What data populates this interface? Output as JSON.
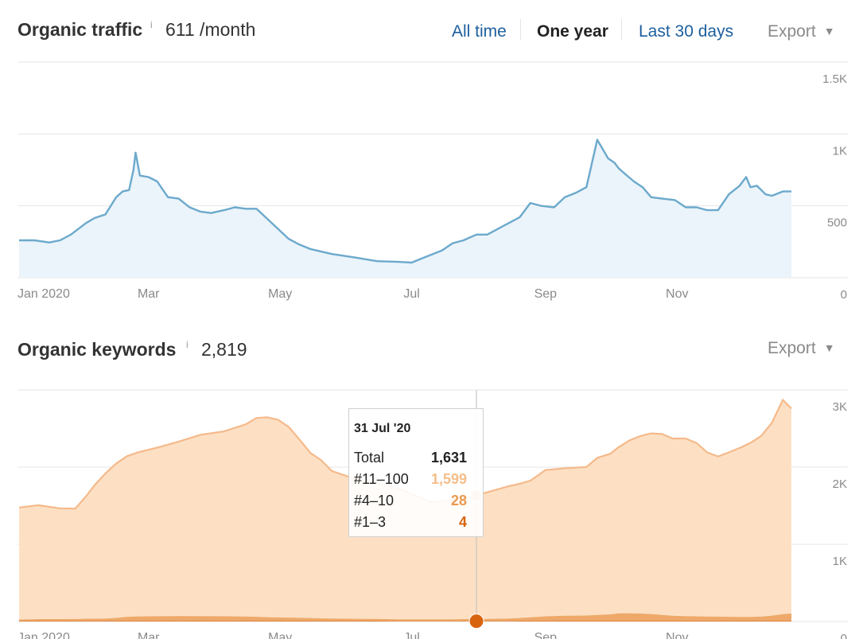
{
  "traffic_section": {
    "title": "Organic traffic",
    "info": "i",
    "value": "611 /month",
    "ranges": [
      "All time",
      "One year",
      "Last 30 days"
    ],
    "active_range": "One year",
    "export_label": "Export"
  },
  "keywords_section": {
    "title": "Organic keywords",
    "info": "i",
    "value": "2,819",
    "export_label": "Export"
  },
  "tooltip": {
    "date": "31 Jul '20",
    "rows": [
      {
        "label": "Total",
        "value": "1,631",
        "color": "#222222"
      },
      {
        "label": "#11–100",
        "value": "1,599",
        "color": "#f5be8a"
      },
      {
        "label": "#4–10",
        "value": "28",
        "color": "#eb9a50"
      },
      {
        "label": "#1–3",
        "value": "4",
        "color": "#d8640f"
      }
    ]
  },
  "colors": {
    "traffic_line": "#6ca9cc",
    "traffic_fill": "#ebf4fa",
    "kw_top100_fill": "#fde0c4",
    "kw_top100_line": "#f5b98a",
    "kw_top10": "#eb9a50",
    "kw_top3": "#d8640f",
    "grid": "#e6e6e6",
    "axis_text": "#8a8a8a"
  },
  "chart_data": [
    {
      "type": "area",
      "title": "Organic traffic",
      "x_ticks": [
        "Jan 2020",
        "Mar",
        "May",
        "Jul",
        "Sep",
        "Nov"
      ],
      "y_ticks": [
        "0",
        "500",
        "1K",
        "1.5K"
      ],
      "ylim": [
        0,
        1500
      ],
      "xlim": [
        "2020-01-01",
        "2020-12-31"
      ],
      "grid": true,
      "series": [
        {
          "values_x": [
            "2020-01-01",
            "2020-01-08",
            "2020-01-15",
            "2020-01-20",
            "2020-01-25",
            "2020-02-01",
            "2020-02-05",
            "2020-02-10",
            "2020-02-15",
            "2020-02-18",
            "2020-02-21",
            "2020-02-23",
            "2020-02-24",
            "2020-02-26",
            "2020-03-01",
            "2020-03-05",
            "2020-03-10",
            "2020-03-15",
            "2020-03-20",
            "2020-03-25",
            "2020-03-30",
            "2020-04-05",
            "2020-04-10",
            "2020-04-15",
            "2020-04-20",
            "2020-04-25",
            "2020-04-30",
            "2020-05-05",
            "2020-05-10",
            "2020-05-15",
            "2020-05-25",
            "2020-06-05",
            "2020-06-15",
            "2020-06-25",
            "2020-07-01",
            "2020-07-05",
            "2020-07-10",
            "2020-07-15",
            "2020-07-20",
            "2020-07-25",
            "2020-07-31",
            "2020-08-05",
            "2020-08-10",
            "2020-08-15",
            "2020-08-20",
            "2020-08-25",
            "2020-08-30",
            "2020-09-05",
            "2020-09-10",
            "2020-09-15",
            "2020-09-20",
            "2020-09-25",
            "2020-09-30",
            "2020-10-03",
            "2020-10-05",
            "2020-10-08",
            "2020-10-12",
            "2020-10-16",
            "2020-10-20",
            "2020-10-25",
            "2020-10-31",
            "2020-11-05",
            "2020-11-10",
            "2020-11-15",
            "2020-11-20",
            "2020-11-25",
            "2020-11-30",
            "2020-12-03",
            "2020-12-05",
            "2020-12-08",
            "2020-12-12",
            "2020-12-15",
            "2020-12-20",
            "2020-12-24"
          ],
          "values": [
            260,
            260,
            245,
            260,
            300,
            380,
            415,
            440,
            560,
            600,
            610,
            750,
            870,
            710,
            700,
            670,
            560,
            550,
            490,
            460,
            450,
            470,
            490,
            480,
            480,
            410,
            340,
            270,
            230,
            200,
            165,
            140,
            115,
            110,
            105,
            130,
            160,
            190,
            240,
            260,
            300,
            300,
            340,
            380,
            420,
            520,
            500,
            490,
            560,
            590,
            630,
            960,
            830,
            800,
            760,
            720,
            670,
            630,
            560,
            550,
            540,
            490,
            490,
            470,
            470,
            580,
            640,
            700,
            630,
            640,
            580,
            570,
            600,
            600
          ]
        }
      ]
    },
    {
      "type": "area",
      "title": "Organic keywords",
      "x_ticks": [
        "Jan 2020",
        "Mar",
        "May",
        "Jul",
        "Sep",
        "Nov"
      ],
      "y_ticks": [
        "0",
        "1K",
        "2K",
        "3K"
      ],
      "ylim": [
        0,
        3000
      ],
      "xlim": [
        "2020-01-01",
        "2020-12-31"
      ],
      "grid": true,
      "stacked": true,
      "x": [
        "2020-01-01",
        "2020-01-10",
        "2020-01-20",
        "2020-01-27",
        "2020-02-01",
        "2020-02-05",
        "2020-02-10",
        "2020-02-15",
        "2020-02-20",
        "2020-02-25",
        "2020-03-05",
        "2020-03-15",
        "2020-03-25",
        "2020-04-05",
        "2020-04-15",
        "2020-04-20",
        "2020-04-25",
        "2020-04-30",
        "2020-05-05",
        "2020-05-10",
        "2020-05-15",
        "2020-05-20",
        "2020-05-25",
        "2020-06-05",
        "2020-06-15",
        "2020-06-25",
        "2020-07-05",
        "2020-07-10",
        "2020-07-15",
        "2020-07-20",
        "2020-07-25",
        "2020-07-31",
        "2020-08-05",
        "2020-08-15",
        "2020-08-20",
        "2020-08-25",
        "2020-09-01",
        "2020-09-10",
        "2020-09-20",
        "2020-09-25",
        "2020-10-01",
        "2020-10-05",
        "2020-10-10",
        "2020-10-15",
        "2020-10-20",
        "2020-10-25",
        "2020-10-30",
        "2020-11-05",
        "2020-11-10",
        "2020-11-15",
        "2020-11-20",
        "2020-11-25",
        "2020-12-01",
        "2020-12-05",
        "2020-12-10",
        "2020-12-15",
        "2020-12-20",
        "2020-12-24"
      ],
      "series": [
        {
          "name": "#11–100",
          "values": [
            1450,
            1475,
            1435,
            1430,
            1585,
            1730,
            1880,
            2000,
            2080,
            2125,
            2185,
            2260,
            2350,
            2395,
            2490,
            2575,
            2590,
            2560,
            2470,
            2310,
            2140,
            2050,
            1910,
            1810,
            1760,
            1690,
            1575,
            1520,
            1530,
            1560,
            1560,
            1599,
            1640,
            1715,
            1740,
            1770,
            1895,
            1910,
            1925,
            2035,
            2080,
            2155,
            2240,
            2300,
            2340,
            2345,
            2295,
            2300,
            2245,
            2125,
            2075,
            2130,
            2200,
            2255,
            2340,
            2500,
            2775,
            2655
          ]
        },
        {
          "name": "#4–10",
          "values": [
            20,
            25,
            25,
            26,
            30,
            30,
            32,
            40,
            55,
            60,
            62,
            65,
            63,
            62,
            58,
            55,
            50,
            48,
            46,
            42,
            40,
            36,
            34,
            30,
            28,
            25,
            24,
            24,
            25,
            25,
            27,
            28,
            30,
            34,
            40,
            50,
            62,
            70,
            72,
            80,
            88,
            100,
            102,
            98,
            92,
            80,
            70,
            65,
            62,
            60,
            58,
            56,
            55,
            54,
            58,
            70,
            90,
            98
          ]
        },
        {
          "name": "#1–3",
          "values": [
            6,
            6,
            6,
            6,
            6,
            6,
            6,
            6,
            6,
            6,
            6,
            6,
            6,
            6,
            6,
            6,
            6,
            5,
            5,
            5,
            5,
            5,
            5,
            5,
            5,
            4,
            4,
            4,
            4,
            4,
            4,
            4,
            4,
            4,
            5,
            5,
            5,
            5,
            5,
            5,
            5,
            5,
            5,
            5,
            5,
            5,
            5,
            5,
            5,
            5,
            5,
            5,
            5,
            5,
            5,
            6,
            6,
            6
          ]
        }
      ]
    }
  ]
}
